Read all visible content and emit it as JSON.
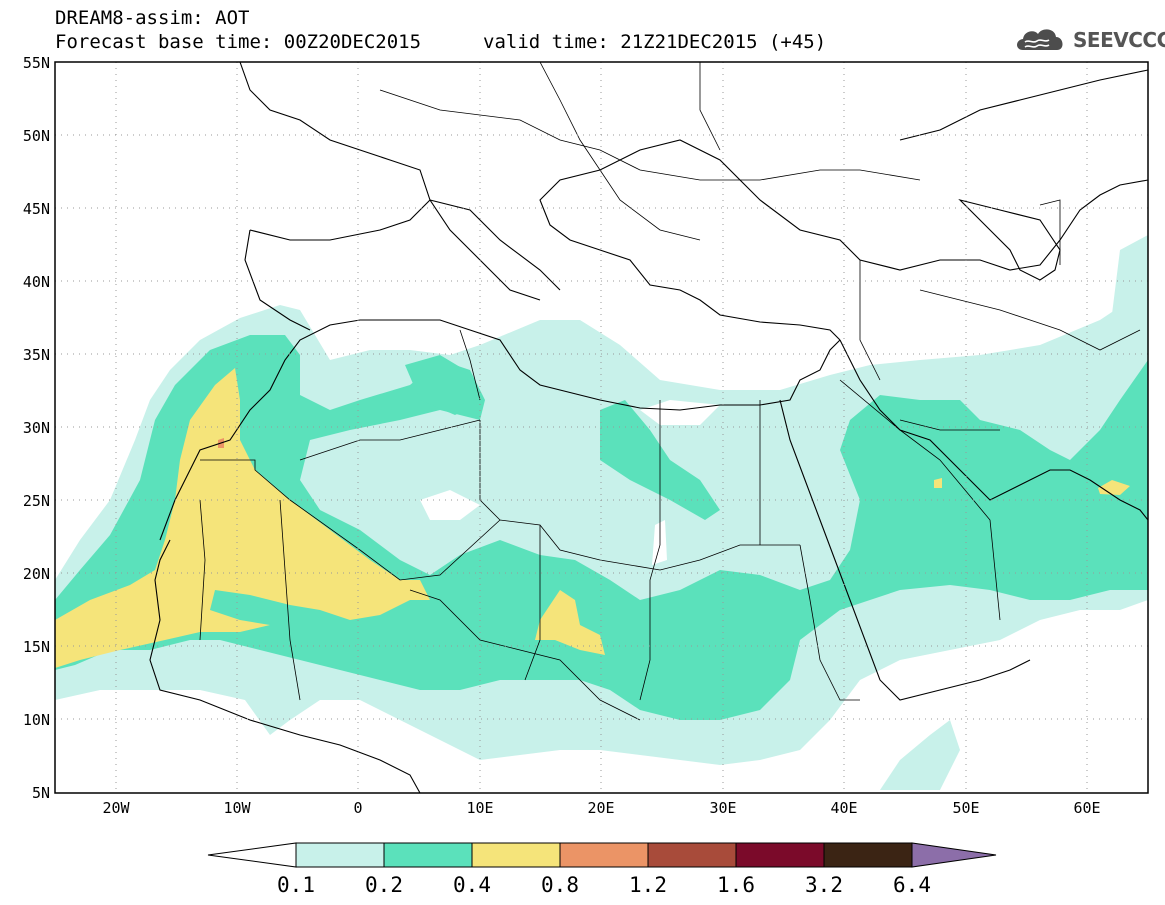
{
  "header": {
    "title": "DREAM8-assim: AOT",
    "base_time": "Forecast base time: 00Z20DEC2015",
    "valid_time": "valid time: 21Z21DEC2015 (+45)"
  },
  "logo": {
    "text": "SEEVCCC",
    "icon": "cloud-icon"
  },
  "map": {
    "lon_range": [
      -25,
      65
    ],
    "lat_range": [
      5,
      55
    ],
    "lat_labels": [
      "55N",
      "50N",
      "45N",
      "40N",
      "35N",
      "30N",
      "25N",
      "20N",
      "15N",
      "10N",
      "5N"
    ],
    "lon_labels": [
      "20W",
      "10W",
      "0",
      "10E",
      "20E",
      "30E",
      "40E",
      "50E",
      "60E"
    ],
    "grid": true
  },
  "colorbar": {
    "thresholds": [
      "0.1",
      "0.2",
      "0.4",
      "0.8",
      "1.2",
      "1.6",
      "3.2",
      "6.4"
    ],
    "colors": [
      "#ffffff",
      "#c8f1ea",
      "#5be1bb",
      "#f5e47a",
      "#eb9466",
      "#a84b3a",
      "#7b0a2a",
      "#3b2414",
      "#8c6ea9"
    ]
  }
}
